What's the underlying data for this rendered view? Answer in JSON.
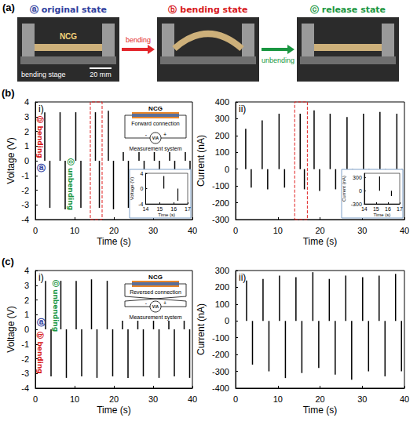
{
  "panel_a": {
    "label": "(a)",
    "states": [
      {
        "text": "ⓐ original state",
        "color": "#2f3e9e"
      },
      {
        "text": "ⓑ bending state",
        "color": "#d7191c"
      },
      {
        "text": "ⓒ release state",
        "color": "#1a9641"
      }
    ],
    "arrows": [
      {
        "text": "bending",
        "color": "#e3262b"
      },
      {
        "text": "unbending",
        "color": "#1a9641"
      }
    ],
    "sample": "NCG",
    "stage": "bending stage",
    "scale_bar": "20 mm"
  },
  "chart_data": [
    {
      "panel": "(b)",
      "title": "i)",
      "type": "bar",
      "xlabel": "Time (s)",
      "ylabel": "Voltage (V)",
      "xlim": [
        0,
        40
      ],
      "xticks": [
        0,
        10,
        20,
        30,
        40
      ],
      "ylim": [
        -4,
        4
      ],
      "yticks": [
        -4,
        -3,
        -2,
        -1,
        0,
        1,
        2,
        3,
        4
      ],
      "color": "#000000",
      "x": [
        2.4,
        3.7,
        6.3,
        7.6,
        10.3,
        11.6,
        15.3,
        16.3,
        18.6,
        19.9,
        22.4,
        23.7,
        26.4,
        27.7,
        30.3,
        31.6,
        34.2,
        35.5,
        38.2,
        39.4
      ],
      "values": [
        3.3,
        -3.2,
        3.3,
        -3.3,
        3.3,
        -3.2,
        3.3,
        -3.2,
        3.4,
        -3.3,
        3.3,
        -3.2,
        3.3,
        -3.3,
        3.3,
        -3.2,
        3.3,
        -3.3,
        3.3,
        -3.3
      ],
      "annotations": [
        {
          "text": "ⓐ",
          "color": "#2f3e9e"
        },
        {
          "text": "ⓑ bending",
          "color": "#d7191c"
        },
        {
          "text": "ⓒ unbending",
          "color": "#1a9641"
        }
      ],
      "schematic": {
        "sample": "NCG",
        "connection": "Forward connection",
        "meter": "Measurement system",
        "symbol": "V/A",
        "terminals": [
          "-",
          "+"
        ]
      },
      "inset": {
        "type": "bar",
        "xlabel": "Time (s)",
        "ylabel": "Voltage (V)",
        "xlim": [
          14,
          17
        ],
        "xticks": [
          14,
          15,
          16,
          17
        ],
        "ylim": [
          -4,
          4
        ],
        "yticks": [
          -4,
          0,
          4
        ],
        "color": "#000000",
        "x": [
          15.3,
          16.3
        ],
        "values": [
          3.3,
          -3.2
        ]
      }
    },
    {
      "title": "ii)",
      "type": "bar",
      "xlabel": "Time (s)",
      "ylabel": "Current (nA)",
      "xlim": [
        0,
        40
      ],
      "xticks": [
        0,
        10,
        20,
        30,
        40
      ],
      "ylim": [
        -300,
        400
      ],
      "yticks": [
        -300,
        -200,
        -100,
        0,
        100,
        200,
        300,
        400
      ],
      "color": "#000000",
      "x": [
        2.4,
        3.7,
        6.3,
        7.6,
        10.3,
        11.6,
        15.3,
        16.3,
        18.6,
        19.9,
        22.4,
        23.7,
        26.4,
        27.7,
        30.3,
        31.6,
        34.2,
        35.5,
        38.2,
        39.4
      ],
      "values": [
        240,
        -110,
        290,
        -120,
        330,
        -110,
        330,
        -120,
        350,
        -130,
        330,
        -120,
        310,
        -120,
        330,
        -120,
        340,
        -130,
        330,
        -120
      ],
      "inset": {
        "type": "bar",
        "xlabel": "Time (s)",
        "ylabel": "Current (nA)",
        "xlim": [
          14,
          17
        ],
        "xticks": [
          14,
          15,
          16,
          17
        ],
        "ylim": [
          -300,
          400
        ],
        "yticks": [
          -300,
          0,
          300
        ],
        "color": "#000000",
        "x": [
          15.3,
          16.3
        ],
        "values": [
          330,
          -120
        ]
      }
    },
    {
      "panel": "(c)",
      "title": "i)",
      "type": "bar",
      "xlabel": "Time (s)",
      "ylabel": "Voltage (V)",
      "xlim": [
        0,
        40
      ],
      "xticks": [
        0,
        10,
        20,
        30,
        40
      ],
      "ylim": [
        -4,
        4
      ],
      "yticks": [
        -4,
        -3,
        -2,
        -1,
        0,
        1,
        2,
        3,
        4
      ],
      "color": "#000000",
      "x": [
        2.6,
        4.0,
        6.5,
        7.9,
        10.4,
        11.8,
        14.3,
        15.7,
        18.3,
        19.7,
        22.2,
        23.6,
        26.1,
        27.5,
        30.1,
        31.5,
        34.0,
        35.4,
        37.9,
        39.3
      ],
      "values": [
        3.3,
        -3.2,
        3.3,
        -3.3,
        3.3,
        -3.2,
        3.4,
        -3.3,
        3.3,
        -3.2,
        3.3,
        -3.3,
        3.3,
        -3.2,
        3.3,
        -3.3,
        3.3,
        -3.2,
        3.3,
        -3.3
      ],
      "annotations": [
        {
          "text": "ⓐ",
          "color": "#2f3e9e"
        },
        {
          "text": "ⓑ bending",
          "color": "#d7191c"
        },
        {
          "text": "ⓒ unbending",
          "color": "#1a9641"
        }
      ],
      "schematic": {
        "sample": "NCG",
        "connection": "Reversed connection",
        "meter": "Measurement system",
        "symbol": "V/A",
        "terminals": [
          "-",
          "+"
        ]
      }
    },
    {
      "title": "ii)",
      "type": "bar",
      "xlabel": "Time (s)",
      "ylabel": "Current (nA)",
      "xlim": [
        0,
        40
      ],
      "xticks": [
        0,
        10,
        20,
        30,
        40
      ],
      "ylim": [
        -400,
        300
      ],
      "yticks": [
        -400,
        -300,
        -200,
        -100,
        0,
        100,
        200,
        300
      ],
      "color": "#000000",
      "x": [
        2.6,
        4.0,
        6.5,
        7.9,
        10.4,
        11.8,
        14.3,
        15.7,
        18.3,
        19.7,
        22.2,
        23.6,
        26.1,
        27.5,
        30.1,
        31.5,
        34.0,
        35.4,
        37.9,
        39.3
      ],
      "values": [
        240,
        -260,
        250,
        -300,
        270,
        -340,
        260,
        -310,
        290,
        -280,
        250,
        -320,
        270,
        -350,
        260,
        -300,
        270,
        -330,
        280,
        -300
      ]
    }
  ]
}
